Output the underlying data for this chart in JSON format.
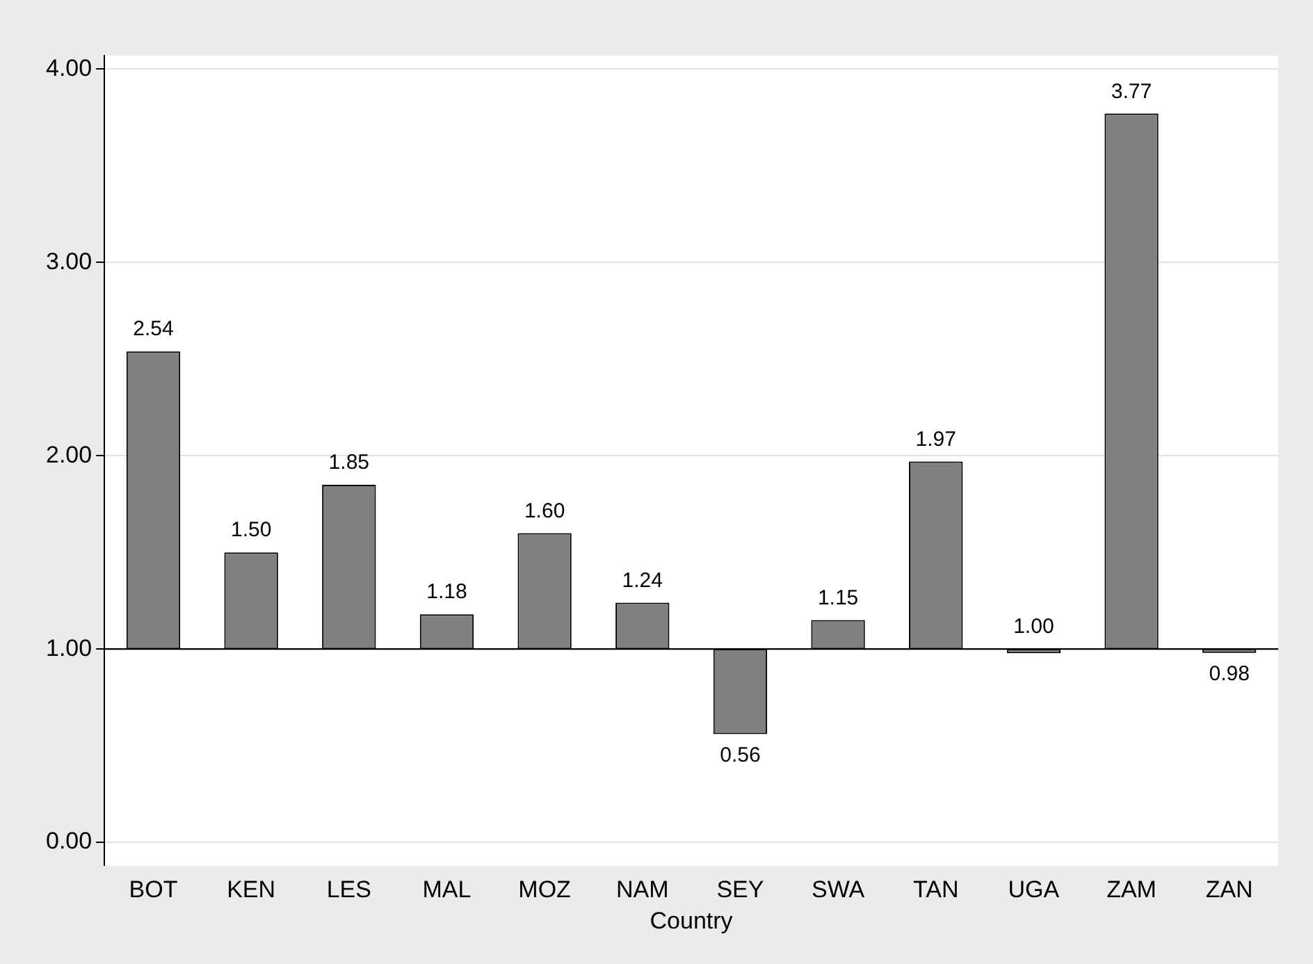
{
  "chart_data": {
    "type": "bar",
    "xlabel": "Country",
    "categories": [
      "BOT",
      "KEN",
      "LES",
      "MAL",
      "MOZ",
      "NAM",
      "SEY",
      "SWA",
      "TAN",
      "UGA",
      "ZAM",
      "ZAN"
    ],
    "base": [
      1,
      1,
      1,
      1,
      1,
      1,
      1,
      1,
      1,
      1,
      1,
      1
    ],
    "values": [
      1.54,
      0.5,
      0.85,
      0.18,
      0.6,
      0.24,
      -0.44,
      0.15,
      0.97,
      0.0,
      2.77,
      -0.02
    ],
    "value_labels": [
      "2.54",
      "1.50",
      "1.85",
      "1.18",
      "1.60",
      "1.24",
      "0.56",
      "1.15",
      "1.97",
      "1.00",
      "3.77",
      "0.98"
    ],
    "color": "#808080",
    "ylim": [
      -0.12,
      4.07
    ],
    "yticks": [
      {
        "value": 0,
        "label": "0.00"
      },
      {
        "value": 1,
        "label": "1.00"
      },
      {
        "value": 2,
        "label": "2.00"
      },
      {
        "value": 3,
        "label": "3.00"
      },
      {
        "value": 4,
        "label": "4.00"
      }
    ],
    "ref_lines": [
      {
        "axis": "y",
        "value": 1,
        "color": "#000000"
      }
    ],
    "grid": "y",
    "legend": false
  }
}
